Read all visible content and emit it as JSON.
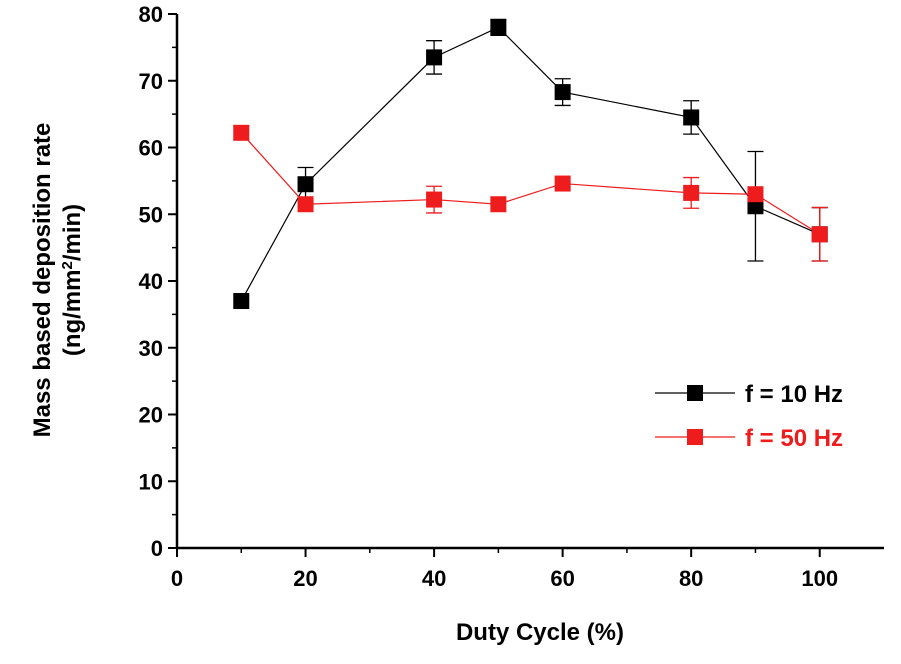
{
  "chart_data": {
    "type": "scatter",
    "xlabel": "Duty Cycle (%)",
    "ylabel_line1": "Mass based deposition rate",
    "ylabel_line2_prefix": "(ng/mm",
    "ylabel_line2_sup": "2",
    "ylabel_line2_suffix": "/min)",
    "xlim": [
      0,
      110
    ],
    "ylim": [
      0,
      80
    ],
    "xticks": [
      0,
      20,
      40,
      60,
      80,
      100
    ],
    "yticks": [
      0,
      10,
      20,
      30,
      40,
      50,
      60,
      70,
      80
    ],
    "grid": false,
    "legend_position": "right",
    "series": [
      {
        "name": "f = 10 Hz",
        "color": "#000000",
        "marker": "square",
        "x": [
          10,
          20,
          40,
          50,
          60,
          80,
          90,
          100
        ],
        "y": [
          37,
          54.5,
          73.5,
          78,
          68.3,
          64.5,
          51.2,
          47
        ],
        "yerr": [
          0,
          2.5,
          2.5,
          1.2,
          2,
          2.5,
          8.2,
          4
        ]
      },
      {
        "name": "f = 50 Hz",
        "color": "#ee1c1c",
        "marker": "square",
        "x": [
          10,
          20,
          40,
          50,
          60,
          80,
          90,
          100
        ],
        "y": [
          62.2,
          51.5,
          52.2,
          51.5,
          54.6,
          53.2,
          53,
          47
        ],
        "yerr": [
          1,
          0,
          2,
          0,
          0,
          2.3,
          0,
          4
        ]
      }
    ]
  }
}
